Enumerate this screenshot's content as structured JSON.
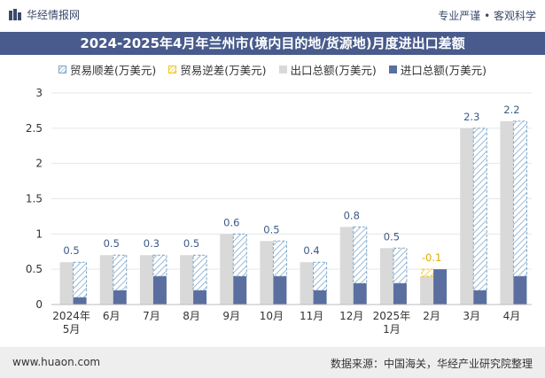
{
  "header": {
    "brand": "华经情报网",
    "slogan": "专业严谨 • 客观科学"
  },
  "title": "2024-2025年4月年兰州市(境内目的地/货源地)月度进出口差额",
  "legend": {
    "surplus": "贸易顺差(万美元)",
    "deficit": "贸易逆差(万美元)",
    "export": "出口总额(万美元)",
    "import": "进口总额(万美元)"
  },
  "colors": {
    "export": "#d9d9d9",
    "import": "#5a6f9f",
    "surplus_line": "#7aa6c8",
    "deficit": "#f0c419",
    "title_bg": "#485b8c"
  },
  "footer": {
    "left": "www.huaon.com",
    "right": "数据来源：中国海关，华经产业研究院整理"
  },
  "chart_data": {
    "type": "bar",
    "categories": [
      [
        "2024年",
        "5月"
      ],
      [
        "6月"
      ],
      [
        "7月"
      ],
      [
        "8月"
      ],
      [
        "9月"
      ],
      [
        "10月"
      ],
      [
        "11月"
      ],
      [
        "12月"
      ],
      [
        "2025年",
        "1月"
      ],
      [
        "2月"
      ],
      [
        "3月"
      ],
      [
        "4月"
      ]
    ],
    "series": [
      {
        "name": "出口总额(万美元)",
        "values": [
          0.6,
          0.7,
          0.7,
          0.7,
          1.0,
          0.9,
          0.6,
          1.1,
          0.8,
          0.4,
          2.5,
          2.6
        ]
      },
      {
        "name": "进口总额(万美元)",
        "values": [
          0.1,
          0.2,
          0.4,
          0.2,
          0.4,
          0.4,
          0.2,
          0.3,
          0.3,
          0.5,
          0.2,
          0.4
        ]
      }
    ],
    "balance_labels": [
      "0.5",
      "0.5",
      "0.3",
      "0.5",
      "0.6",
      "0.5",
      "0.4",
      "0.8",
      "0.5",
      "-0.1",
      "2.3",
      "2.2"
    ],
    "balance_values": [
      0.5,
      0.5,
      0.3,
      0.5,
      0.6,
      0.5,
      0.4,
      0.8,
      0.5,
      -0.1,
      2.3,
      2.2
    ],
    "ylim": [
      0,
      3
    ],
    "yticks": [
      "0",
      "0.5",
      "1",
      "1.5",
      "2",
      "2.5",
      "3"
    ],
    "grid": true,
    "legend_position": "top"
  }
}
